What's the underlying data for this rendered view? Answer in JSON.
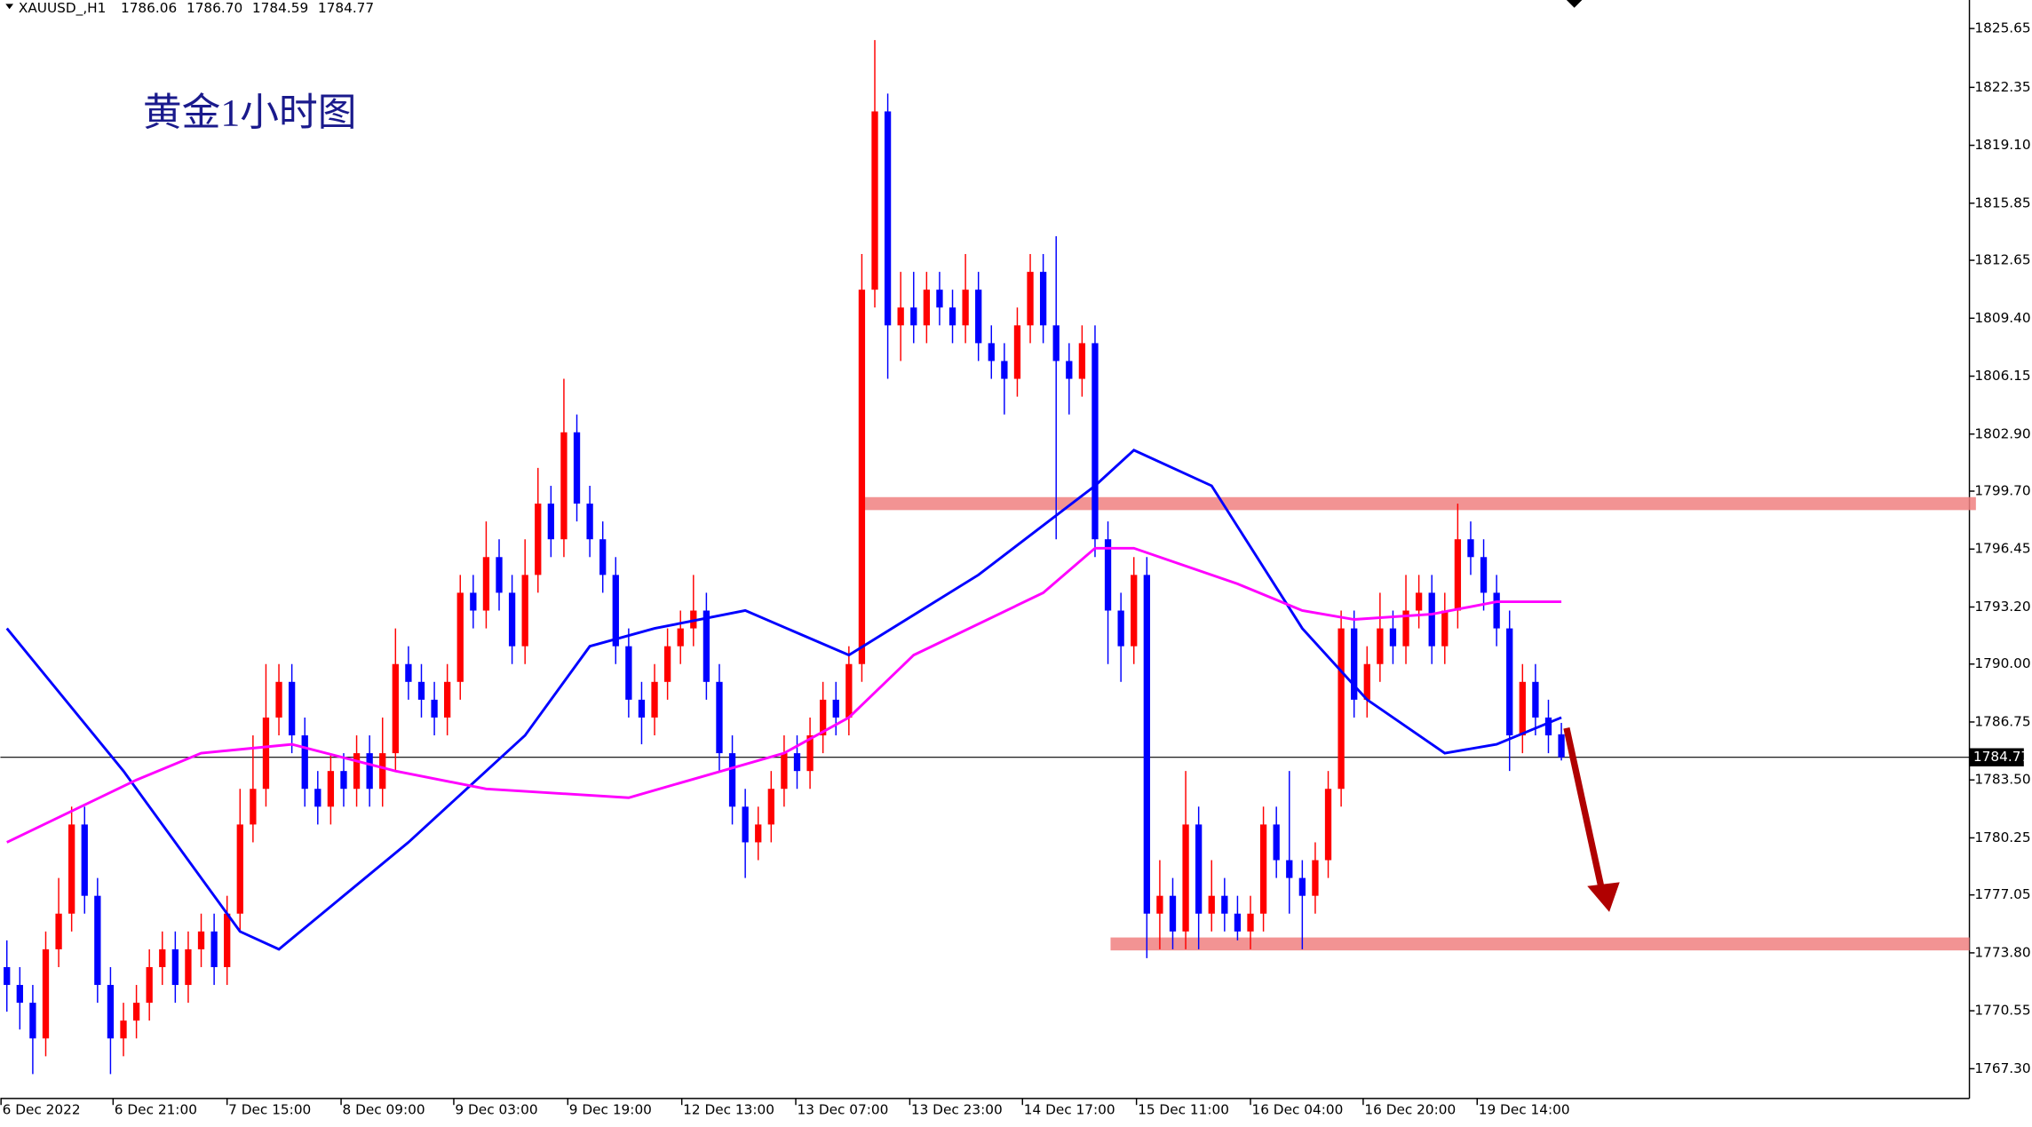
{
  "chart_data": {
    "type": "candlestick",
    "symbol": "XAUUSD_,H1",
    "header_values": [
      1786.06,
      {
        "value": 1786.7,
        "label": "1786.70"
      },
      1784.59,
      1784.77
    ],
    "title": "黄金1小时图",
    "up_color": "#ff0000",
    "down_color": "#0000ff",
    "open": [
      1773,
      1772,
      1771,
      1769,
      1774,
      1776,
      1781,
      1777,
      1772,
      1769,
      1770,
      1771,
      1773,
      1774,
      1772,
      1774,
      1775,
      1773,
      1776,
      1781,
      1783,
      1787,
      1789,
      1786,
      1783,
      1782,
      1784,
      1783,
      1785,
      1783,
      1785,
      1790,
      1789,
      1788,
      1787,
      1789,
      1794,
      1793,
      1796,
      1794,
      1791,
      1795,
      1799,
      1797,
      1803,
      1799,
      1797,
      1795,
      1791,
      1788,
      1787,
      1789,
      1791,
      1792,
      1793,
      1789,
      1785,
      1782,
      1780,
      1781,
      1783,
      1785,
      1784,
      1786,
      1788,
      1787,
      1790,
      1811,
      1821,
      1809,
      1810,
      1809,
      1811,
      1810,
      1809,
      1811,
      1808,
      1807,
      1806,
      1809,
      1812,
      1809,
      1807,
      1806,
      1808,
      1797,
      1793,
      1791,
      1795,
      1776,
      1777,
      1775,
      1781,
      1776,
      1777,
      1776,
      1775,
      1776,
      1781,
      1779,
      1778,
      1777,
      1779,
      1783,
      1792,
      1788,
      1790,
      1792,
      1791,
      1793,
      1794,
      1791,
      1793,
      1797,
      1796,
      1794,
      1792,
      1786,
      1789,
      1787,
      1786.06
    ],
    "high": [
      1774.5,
      1773,
      1772,
      1775,
      1778,
      1782,
      1782,
      1778,
      1773,
      1771,
      1772,
      1774,
      1775,
      1775,
      1775,
      1776,
      1776,
      1777,
      1783,
      1786,
      1790,
      1790,
      1790,
      1787,
      1784,
      1785,
      1785,
      1786,
      1786,
      1787,
      1792,
      1791,
      1790,
      1789,
      1790,
      1795,
      1795,
      1798,
      1797,
      1795,
      1797,
      1801,
      1800,
      1806,
      1804,
      1800,
      1798,
      1796,
      1792,
      1789,
      1790,
      1792,
      1793,
      1795,
      1794,
      1790,
      1786,
      1783,
      1782,
      1784,
      1786,
      1786,
      1787,
      1789,
      1789,
      1791,
      1813,
      1825,
      1822,
      1812,
      1812,
      1812,
      1812,
      1811,
      1813,
      1812,
      1809,
      1808,
      1810,
      1813,
      1813,
      1814,
      1808,
      1809,
      1809,
      1798,
      1794,
      1796,
      1796,
      1779,
      1778,
      1784,
      1782,
      1779,
      1778,
      1777,
      1777,
      1782,
      1782,
      1784,
      1779,
      1780,
      1784,
      1793,
      1793,
      1791,
      1794,
      1793,
      1795,
      1795,
      1795,
      1794,
      1799,
      1798,
      1797,
      1795,
      1793,
      1790,
      1790,
      1788,
      1786.7
    ],
    "low": [
      1770.5,
      1769.5,
      1767,
      1768,
      1773,
      1775,
      1776,
      1771,
      1767,
      1768,
      1769,
      1770,
      1772,
      1771,
      1771,
      1773,
      1772,
      1772,
      1775,
      1780,
      1782,
      1786,
      1785,
      1782,
      1781,
      1781,
      1782,
      1782,
      1782,
      1782,
      1784,
      1788,
      1787,
      1786,
      1786,
      1788,
      1792,
      1792,
      1793,
      1790,
      1790,
      1794,
      1796,
      1796,
      1798,
      1796,
      1794,
      1790,
      1787,
      1785.5,
      1786,
      1788,
      1790,
      1791,
      1788,
      1784,
      1781,
      1778,
      1779,
      1780,
      1782,
      1783,
      1783,
      1785,
      1786,
      1786,
      1789,
      1810,
      1806,
      1807,
      1808,
      1808,
      1809,
      1808,
      1808,
      1807,
      1806,
      1804,
      1805,
      1808,
      1808,
      1797,
      1804,
      1805,
      1796,
      1790,
      1789,
      1790,
      1773.5,
      1774,
      1774,
      1774,
      1774,
      1775,
      1775,
      1774.5,
      1774,
      1775,
      1778,
      1776,
      1774,
      1776,
      1778,
      1782,
      1787,
      1787,
      1789,
      1790,
      1790,
      1792,
      1790,
      1790,
      1792,
      1795,
      1793,
      1791,
      1784,
      1785,
      1786,
      1785,
      1784.59
    ],
    "close": [
      1772,
      1771,
      1769,
      1774,
      1776,
      1781,
      1777,
      1772,
      1769,
      1770,
      1771,
      1773,
      1774,
      1772,
      1774,
      1775,
      1773,
      1776,
      1781,
      1783,
      1787,
      1789,
      1786,
      1783,
      1782,
      1784,
      1783,
      1785,
      1783,
      1785,
      1790,
      1789,
      1788,
      1787,
      1789,
      1794,
      1793,
      1796,
      1794,
      1791,
      1795,
      1799,
      1797,
      1803,
      1799,
      1797,
      1795,
      1791,
      1788,
      1787,
      1789,
      1791,
      1792,
      1793,
      1789,
      1785,
      1782,
      1780,
      1781,
      1783,
      1785,
      1784,
      1786,
      1788,
      1787,
      1790,
      1811,
      1821,
      1809,
      1810,
      1809,
      1811,
      1810,
      1809,
      1811,
      1808,
      1807,
      1806,
      1809,
      1812,
      1809,
      1807,
      1806,
      1808,
      1797,
      1793,
      1791,
      1795,
      1776,
      1777,
      1775,
      1781,
      1776,
      1777,
      1776,
      1775,
      1776,
      1781,
      1779,
      1778,
      1777,
      1779,
      1783,
      1792,
      1788,
      1790,
      1792,
      1791,
      1793,
      1794,
      1791,
      1793,
      1797,
      1796,
      1794,
      1792,
      1786,
      1789,
      1787,
      1786,
      1784.77
    ],
    "lines": [
      {
        "color": "#0000ff",
        "x": [
          0,
          9,
          18,
          21,
          31,
          40,
          45,
          50,
          57,
          65,
          75,
          84,
          87,
          93,
          100,
          105,
          111,
          115,
          120
        ],
        "values": [
          1792,
          1784,
          1775,
          1774,
          1780,
          1786,
          1791,
          1792,
          1793,
          1790.5,
          1795,
          1800,
          1802,
          1800,
          1792,
          1788,
          1785,
          1785.5,
          1787
        ]
      },
      {
        "color": "#ff00ff",
        "x": [
          0,
          10,
          15,
          22,
          30,
          37,
          48,
          60,
          65,
          70,
          80,
          84,
          87,
          95,
          100,
          104,
          110,
          115,
          120
        ],
        "values": [
          1780,
          1783.5,
          1785,
          1785.5,
          1784,
          1783,
          1782.5,
          1785,
          1787,
          1790.5,
          1794,
          1796.5,
          1796.5,
          1794.5,
          1793,
          1792.5,
          1792.8,
          1793.5,
          1793.5
        ]
      }
    ],
    "zones": [
      1799.0,
      1774.3
    ],
    "zone_color": "#f08080",
    "last_price": 1784.77,
    "xlim": [
      -0.5,
      151.5
    ],
    "ylim": [
      1765.63,
      1827.25
    ],
    "yticks": [
      1825.65,
      1822.35,
      {
        "value": 1819.1,
        "label": "1819.10"
      },
      1815.85,
      1812.65,
      {
        "value": 1809.4,
        "label": "1809.40"
      },
      1806.15,
      {
        "value": 1802.9,
        "label": "1802.90"
      },
      {
        "value": 1799.7,
        "label": "1799.70"
      },
      1796.45,
      {
        "value": 1793.2,
        "label": "1793.20"
      },
      {
        "value": 1790,
        "label": "1790.00"
      },
      1786.75,
      {
        "value": 1783.5,
        "label": "1783.50"
      },
      1780.25,
      1777.05,
      {
        "value": 1773.8,
        "label": "1773.80"
      },
      1770.55,
      {
        "value": 1767.3,
        "label": "1767.30"
      }
    ],
    "xticks": [
      {
        "value": -0.5,
        "label": "6 Dec 2022"
      },
      {
        "value": 8.2,
        "label": "6 Dec 21:00"
      },
      {
        "value": 17,
        "label": "7 Dec 15:00"
      },
      {
        "value": 25.8,
        "label": "8 Dec 09:00"
      },
      {
        "value": 34.5,
        "label": "9 Dec 03:00"
      },
      {
        "value": 43.3,
        "label": "9 Dec 19:00"
      },
      {
        "value": 52.1,
        "label": "12 Dec 13:00"
      },
      {
        "value": 60.9,
        "label": "13 Dec 07:00"
      },
      {
        "value": 69.7,
        "label": "13 Dec 23:00"
      },
      {
        "value": 78.4,
        "label": "14 Dec 17:00"
      },
      {
        "value": 87.2,
        "label": "15 Dec 11:00"
      },
      {
        "value": 96,
        "label": "16 Dec 04:00"
      },
      {
        "value": 104.7,
        "label": "16 Dec 20:00"
      },
      {
        "value": 113.5,
        "label": "19 Dec 14:00"
      }
    ]
  }
}
